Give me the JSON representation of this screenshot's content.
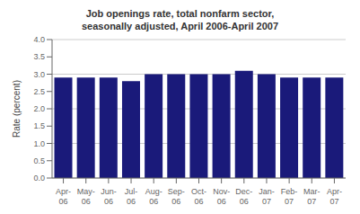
{
  "chart_data": {
    "type": "bar",
    "title": "Job openings rate, total nonfarm sector,\nseasonally adjusted, April 2006-April 2007",
    "categories": [
      "Apr-\n06",
      "May-\n06",
      "Jun-\n06",
      "Jul-\n06",
      "Aug-\n06",
      "Sep-\n06",
      "Oct-\n06",
      "Nov-\n06",
      "Dec-\n06",
      "Jan-\n07",
      "Feb-\n07",
      "Mar-\n07",
      "Apr-\n07"
    ],
    "values": [
      2.9,
      2.9,
      2.9,
      2.8,
      3.0,
      3.0,
      3.0,
      3.0,
      3.1,
      3.0,
      2.9,
      2.9,
      2.9
    ],
    "color": "#1a1a7a",
    "ylabel": "Rate (percent)",
    "ylim": [
      0,
      4.0
    ],
    "yticks": [
      {
        "value": 0.0,
        "label": "0.0"
      },
      0.5,
      {
        "value": 1.0,
        "label": "1.0"
      },
      1.5,
      {
        "value": 2.0,
        "label": "2.0"
      },
      2.5,
      {
        "value": 3.0,
        "label": "3.0"
      },
      3.5,
      {
        "value": 4.0,
        "label": "4.0"
      }
    ],
    "grid": true
  }
}
